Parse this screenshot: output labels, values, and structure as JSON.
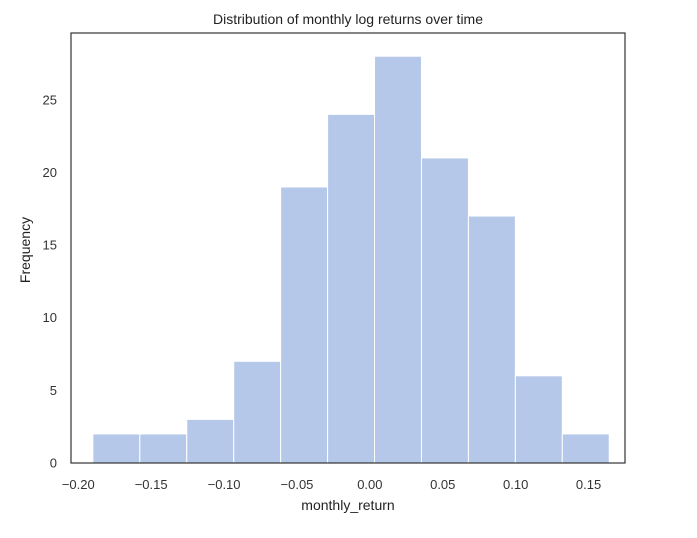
{
  "chart_data": {
    "type": "bar",
    "title": "Distribution of monthly log returns over time",
    "xlabel": "monthly_return",
    "ylabel": "Frequency",
    "bin_edges": [
      -0.19,
      -0.1578,
      -0.1256,
      -0.0934,
      -0.0612,
      -0.029,
      0.0032,
      0.0354,
      0.0676,
      0.0998,
      0.132,
      0.1642
    ],
    "values": [
      2,
      2,
      3,
      7,
      19,
      24,
      28,
      21,
      17,
      6,
      2
    ],
    "xlim": [
      -0.205,
      0.175
    ],
    "ylim": [
      0,
      29.6
    ],
    "xticks": [
      -0.2,
      -0.15,
      -0.1,
      -0.05,
      0.0,
      0.05,
      0.1,
      0.15
    ],
    "xtick_labels": [
      "−0.20",
      "−0.15",
      "−0.10",
      "−0.05",
      "0.00",
      "0.05",
      "0.10",
      "0.15"
    ],
    "yticks": [
      0,
      5,
      10,
      15,
      20,
      25
    ],
    "ytick_labels": [
      "0",
      "5",
      "10",
      "15",
      "20",
      "25"
    ],
    "grid": false,
    "bar_color": "#b5c8ea",
    "bar_edge_color": "#ffffff"
  }
}
